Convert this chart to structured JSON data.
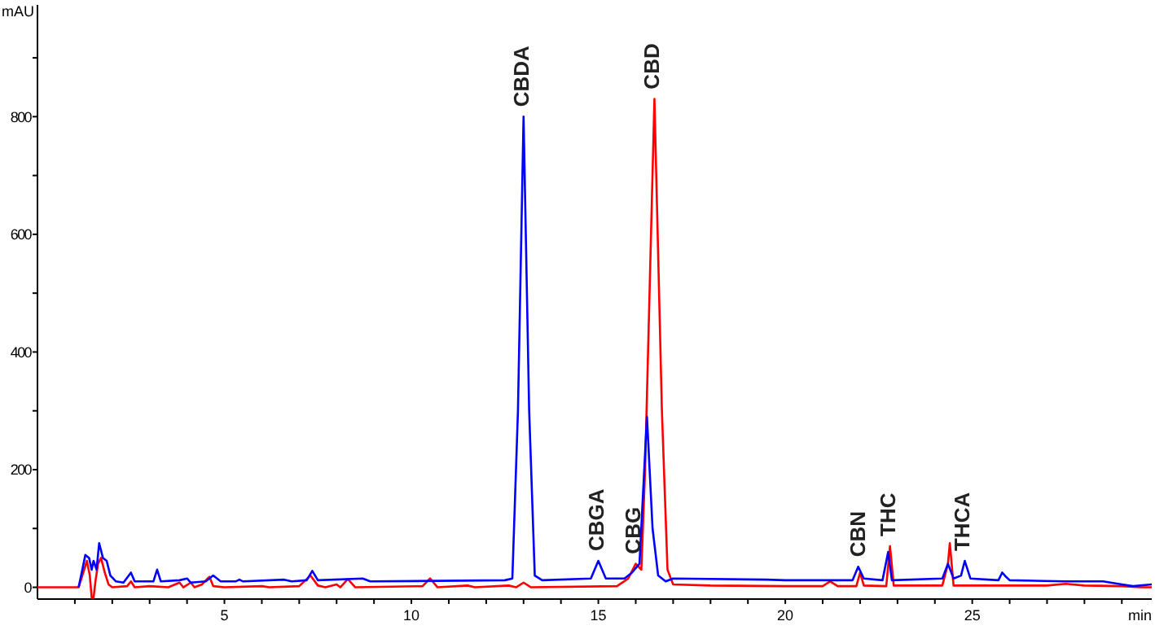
{
  "chart_data": {
    "type": "line",
    "xlabel": "min",
    "ylabel": "mAU",
    "xlim": [
      0,
      29.8
    ],
    "ylim": [
      -20,
      990
    ],
    "xticks": [
      {
        "value": 1,
        "label": null
      },
      {
        "value": 2,
        "label": null
      },
      {
        "value": 3,
        "label": null
      },
      {
        "value": 4,
        "label": null
      },
      5,
      {
        "value": 6,
        "label": null
      },
      {
        "value": 7,
        "label": null
      },
      {
        "value": 8,
        "label": null
      },
      {
        "value": 9,
        "label": null
      },
      10,
      {
        "value": 11,
        "label": null
      },
      {
        "value": 12,
        "label": null
      },
      {
        "value": 13,
        "label": null
      },
      {
        "value": 14,
        "label": null
      },
      15,
      {
        "value": 16,
        "label": null
      },
      {
        "value": 17,
        "label": null
      },
      {
        "value": 18,
        "label": null
      },
      {
        "value": 19,
        "label": null
      },
      20,
      {
        "value": 21,
        "label": null
      },
      {
        "value": 22,
        "label": null
      },
      {
        "value": 23,
        "label": null
      },
      {
        "value": 24,
        "label": null
      },
      25,
      {
        "value": 26,
        "label": null
      },
      {
        "value": 27,
        "label": null
      },
      {
        "value": 28,
        "label": null
      },
      {
        "value": 29,
        "label": null
      }
    ],
    "yticks": [
      0,
      {
        "value": 100,
        "label": null
      },
      200,
      {
        "value": 300,
        "label": null
      },
      400,
      {
        "value": 500,
        "label": null
      },
      600,
      {
        "value": 700,
        "label": null
      },
      800,
      {
        "value": 900,
        "label": null
      }
    ],
    "marker": "none",
    "line_style": "solid",
    "series": [
      {
        "color": "#ff0000",
        "x": [
          0,
          1.1,
          1.25,
          1.32,
          1.4,
          1.45,
          1.5,
          1.55,
          1.62,
          1.7,
          1.8,
          1.9,
          2.0,
          2.4,
          2.5,
          2.6,
          3.0,
          3.5,
          3.8,
          3.9,
          4.1,
          4.2,
          4.4,
          4.6,
          4.7,
          5,
          6,
          6.2,
          7,
          7.3,
          7.5,
          7.7,
          8.0,
          8.1,
          8.3,
          8.5,
          10.3,
          10.5,
          10.7,
          11.5,
          11.7,
          12.6,
          12.8,
          13.0,
          13.2,
          15.5,
          15.8,
          16.0,
          16.15,
          16.25,
          16.5,
          16.7,
          16.85,
          17.0,
          18,
          20,
          21,
          21.2,
          21.4,
          21.9,
          22.0,
          22.1,
          22.7,
          22.8,
          22.9,
          24.2,
          24.35,
          24.4,
          24.5,
          26,
          27,
          27.5,
          28,
          29,
          29.5,
          29.8
        ],
        "values": [
          0,
          0,
          30,
          45,
          20,
          -18,
          -18,
          10,
          40,
          50,
          25,
          5,
          0,
          2,
          10,
          0,
          2,
          0,
          8,
          0,
          8,
          0,
          5,
          18,
          2,
          0,
          2,
          0,
          2,
          20,
          3,
          0,
          5,
          0,
          14,
          0,
          2,
          15,
          0,
          3,
          0,
          3,
          0,
          8,
          0,
          2,
          15,
          40,
          30,
          200,
          830,
          300,
          30,
          5,
          3,
          2,
          2,
          10,
          2,
          2,
          25,
          3,
          2,
          70,
          3,
          3,
          40,
          75,
          3,
          3,
          3,
          6,
          3,
          2,
          0,
          0
        ]
      },
      {
        "color": "#0000ff",
        "x": [
          1.1,
          1.2,
          1.28,
          1.38,
          1.45,
          1.5,
          1.58,
          1.65,
          1.75,
          1.85,
          1.95,
          2.1,
          2.3,
          2.5,
          2.6,
          3.1,
          3.2,
          3.3,
          3.8,
          4.0,
          4.1,
          4.5,
          4.7,
          4.9,
          5.3,
          5.4,
          5.5,
          6.6,
          6.8,
          7.2,
          7.35,
          7.5,
          8.7,
          8.9,
          12.5,
          12.7,
          12.85,
          13.0,
          13.15,
          13.3,
          13.5,
          14.8,
          15.0,
          15.2,
          15.7,
          15.9,
          16.1,
          16.3,
          16.45,
          16.6,
          16.8,
          17.0,
          19.5,
          20.0,
          21.8,
          21.95,
          22.1,
          22.6,
          22.75,
          22.85,
          24.2,
          24.35,
          24.5,
          24.7,
          24.8,
          24.95,
          25.7,
          25.8,
          25.9,
          26.0,
          27.5,
          28.5,
          29.0,
          29.3,
          29.8
        ],
        "values": [
          0,
          30,
          55,
          50,
          30,
          45,
          30,
          75,
          50,
          45,
          20,
          10,
          8,
          25,
          10,
          10,
          30,
          10,
          12,
          15,
          8,
          10,
          20,
          10,
          10,
          13,
          10,
          13,
          10,
          12,
          28,
          12,
          15,
          10,
          12,
          15,
          300,
          800,
          300,
          20,
          12,
          15,
          45,
          15,
          15,
          25,
          40,
          290,
          100,
          20,
          10,
          15,
          13,
          12,
          12,
          35,
          15,
          12,
          60,
          12,
          15,
          40,
          15,
          20,
          45,
          15,
          12,
          25,
          18,
          12,
          10,
          10,
          5,
          2,
          5
        ]
      }
    ],
    "annotations": [
      {
        "text": "CBDA",
        "x": 13.0,
        "y": 800
      },
      {
        "text": "CBGA",
        "x": 15.0,
        "y": 45
      },
      {
        "text": "CBG",
        "x": 16.0,
        "y": 40
      },
      {
        "text": "CBD",
        "x": 16.5,
        "y": 830
      },
      {
        "text": "CBN",
        "x": 22.0,
        "y": 35
      },
      {
        "text": "THC",
        "x": 22.8,
        "y": 70
      },
      {
        "text": "THCA",
        "x": 24.8,
        "y": 45
      }
    ]
  }
}
